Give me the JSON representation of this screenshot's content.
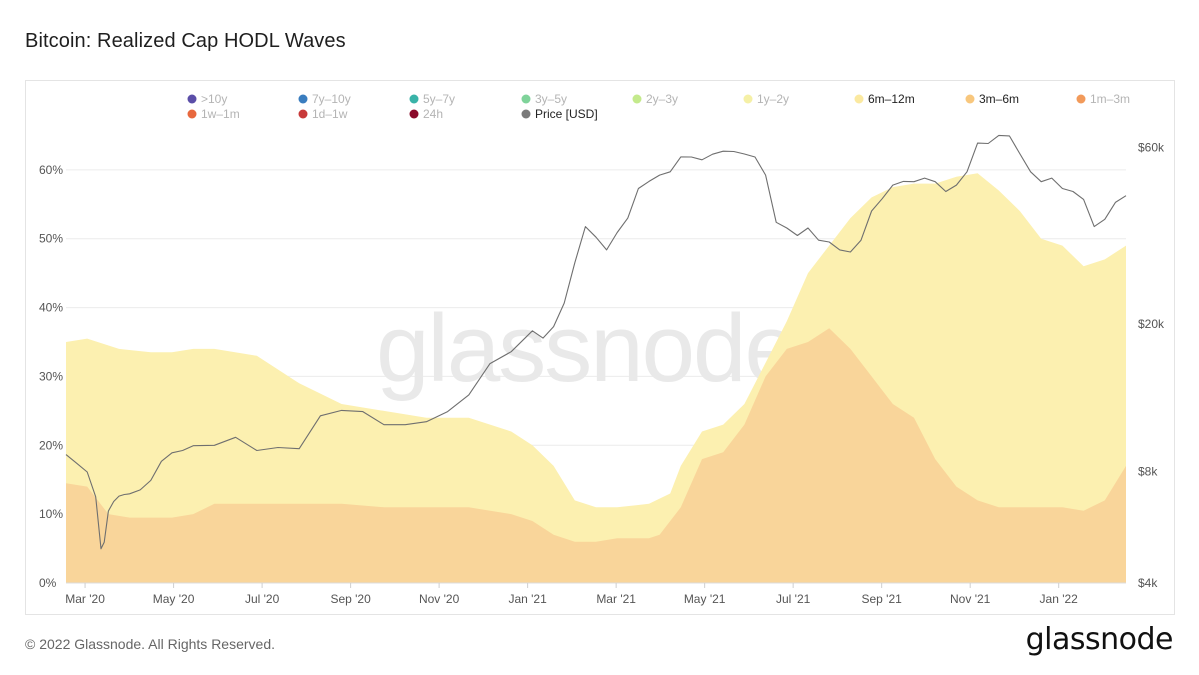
{
  "page": {
    "title": "Bitcoin: Realized Cap HODL Waves",
    "footer": "© 2022 Glassnode. All Rights Reserved.",
    "brand": "glassnode",
    "watermark": "glassnode"
  },
  "chart_data": {
    "type": "area",
    "title": "Bitcoin: Realized Cap HODL Waves",
    "x_ticks": [
      "Mar '20",
      "May '20",
      "Jul '20",
      "Sep '20",
      "Nov '20",
      "Jan '21",
      "Mar '21",
      "May '21",
      "Jul '21",
      "Sep '21",
      "Nov '21",
      "Jan '22"
    ],
    "x_start": "2020-03-01",
    "x_end": "2022-03-05",
    "y_left": {
      "ticks": [
        "0%",
        "10%",
        "20%",
        "30%",
        "40%",
        "50%",
        "60%"
      ],
      "values": [
        0,
        10,
        20,
        30,
        40,
        50,
        60
      ],
      "ylim": [
        0,
        70
      ]
    },
    "y_right": {
      "scale": "log",
      "ticks": [
        "$4k",
        "$8k",
        "$20k",
        "$60k"
      ],
      "values": [
        4000,
        8000,
        20000,
        60000
      ],
      "ylim": [
        4000,
        80000
      ]
    },
    "legend": [
      {
        "name": ">10y",
        "color": "#5b4ea8",
        "active": false
      },
      {
        "name": "7y–10y",
        "color": "#3a7dbf",
        "active": false
      },
      {
        "name": "5y–7y",
        "color": "#39b3a8",
        "active": false
      },
      {
        "name": "3y–5y",
        "color": "#7fd39a",
        "active": false
      },
      {
        "name": "2y–3y",
        "color": "#c4ea8c",
        "active": false
      },
      {
        "name": "1y–2y",
        "color": "#f5f0a6",
        "active": false
      },
      {
        "name": "6m–12m",
        "color": "#fbe9a0",
        "active": true
      },
      {
        "name": "3m–6m",
        "color": "#f8c77d",
        "active": true
      },
      {
        "name": "1m–3m",
        "color": "#f29a5a",
        "active": false
      },
      {
        "name": "1w–1m",
        "color": "#e8683e",
        "active": false
      },
      {
        "name": "1d–1w",
        "color": "#c83a3a",
        "active": false
      },
      {
        "name": "24h",
        "color": "#8a0a2a",
        "active": false
      },
      {
        "name": "Price [USD]",
        "color": "#7a7a7a",
        "active": true
      }
    ],
    "series": [
      {
        "name": "6m–12m (cumulative top)",
        "color": "#fcf0b0",
        "x": [
          0,
          0.02,
          0.05,
          0.08,
          0.1,
          0.12,
          0.14,
          0.18,
          0.22,
          0.26,
          0.3,
          0.34,
          0.38,
          0.42,
          0.44,
          0.46,
          0.48,
          0.5,
          0.52,
          0.55,
          0.57,
          0.58,
          0.6,
          0.62,
          0.64,
          0.66,
          0.68,
          0.7,
          0.72,
          0.74,
          0.76,
          0.78,
          0.8,
          0.82,
          0.84,
          0.86,
          0.88,
          0.9,
          0.92,
          0.94,
          0.96,
          0.98,
          1.0
        ],
        "values": [
          35,
          35.5,
          34,
          33.5,
          33.5,
          34,
          34,
          33,
          29,
          26,
          25,
          24,
          24,
          22,
          20,
          17,
          12,
          11,
          11,
          11.5,
          13,
          17,
          22,
          23,
          26,
          32,
          38,
          45,
          49,
          53,
          56,
          57.5,
          58,
          58,
          59,
          59.5,
          57,
          54,
          50,
          49,
          46,
          47,
          49
        ]
      },
      {
        "name": "3m–6m (cumulative top)",
        "color": "#f9d59a",
        "x": [
          0,
          0.02,
          0.03,
          0.04,
          0.06,
          0.08,
          0.1,
          0.12,
          0.14,
          0.18,
          0.22,
          0.26,
          0.3,
          0.34,
          0.38,
          0.42,
          0.44,
          0.46,
          0.48,
          0.5,
          0.52,
          0.54,
          0.55,
          0.56,
          0.58,
          0.6,
          0.62,
          0.64,
          0.66,
          0.68,
          0.7,
          0.72,
          0.74,
          0.76,
          0.78,
          0.8,
          0.82,
          0.84,
          0.86,
          0.88,
          0.9,
          0.92,
          0.94,
          0.96,
          0.98,
          1.0
        ],
        "values": [
          14.5,
          14,
          12,
          10,
          9.5,
          9.5,
          9.5,
          10,
          11.5,
          11.5,
          11.5,
          11.5,
          11,
          11,
          11,
          10,
          9,
          7,
          6,
          6,
          6.5,
          6.5,
          6.5,
          7,
          11,
          18,
          19,
          23,
          30,
          34,
          35,
          37,
          34,
          30,
          26,
          24,
          18,
          14,
          12,
          11,
          11,
          11,
          11,
          10.5,
          12,
          17
        ]
      }
    ],
    "price": {
      "name": "Price [USD]",
      "color": "#6f6f6f",
      "x": [
        0,
        0.01,
        0.02,
        0.028,
        0.033,
        0.036,
        0.04,
        0.045,
        0.05,
        0.055,
        0.06,
        0.07,
        0.08,
        0.09,
        0.1,
        0.11,
        0.12,
        0.14,
        0.16,
        0.18,
        0.2,
        0.22,
        0.24,
        0.26,
        0.28,
        0.3,
        0.32,
        0.34,
        0.36,
        0.38,
        0.4,
        0.42,
        0.44,
        0.45,
        0.46,
        0.47,
        0.48,
        0.49,
        0.5,
        0.51,
        0.52,
        0.53,
        0.54,
        0.55,
        0.56,
        0.57,
        0.58,
        0.59,
        0.6,
        0.61,
        0.62,
        0.63,
        0.64,
        0.65,
        0.66,
        0.67,
        0.68,
        0.69,
        0.7,
        0.71,
        0.72,
        0.73,
        0.74,
        0.75,
        0.76,
        0.77,
        0.78,
        0.79,
        0.8,
        0.81,
        0.82,
        0.83,
        0.84,
        0.85,
        0.86,
        0.87,
        0.88,
        0.89,
        0.9,
        0.91,
        0.92,
        0.93,
        0.94,
        0.95,
        0.96,
        0.97,
        0.98,
        0.99,
        1.0
      ],
      "values": [
        8800,
        8500,
        7900,
        6900,
        4900,
        5200,
        6200,
        6700,
        6800,
        7000,
        6900,
        7200,
        7500,
        8600,
        8900,
        9200,
        9300,
        9500,
        9800,
        9200,
        9200,
        9300,
        11200,
        11800,
        11500,
        10800,
        10600,
        11000,
        11500,
        13000,
        15500,
        17000,
        19000,
        18500,
        19500,
        23000,
        29000,
        37000,
        34000,
        32000,
        35000,
        39000,
        46000,
        49000,
        50000,
        52000,
        56000,
        57000,
        55000,
        58000,
        58000,
        59000,
        57000,
        57000,
        50000,
        38000,
        36000,
        35000,
        36000,
        34000,
        33000,
        32000,
        31000,
        34000,
        40000,
        44000,
        47000,
        49000,
        48000,
        50000,
        48000,
        46000,
        47000,
        52000,
        61000,
        62000,
        64000,
        65000,
        57000,
        52000,
        48000,
        50000,
        46000,
        46000,
        43000,
        37000,
        38000,
        43000,
        44000
      ]
    }
  }
}
